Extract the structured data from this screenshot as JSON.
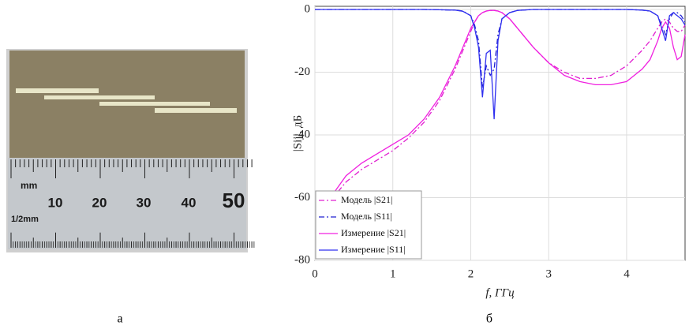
{
  "photo": {
    "ruler_labels": [
      "mm",
      "10",
      "20",
      "30",
      "40",
      "50",
      "1/2mm"
    ]
  },
  "captions": [
    "а",
    "б"
  ],
  "chart_data": {
    "type": "line",
    "xlabel": "f, ГГц",
    "ylabel": "|Sij|, дБ",
    "xlim": [
      0,
      4.75
    ],
    "ylim": [
      -80,
      1
    ],
    "xticks": [
      0,
      1,
      2,
      3,
      4
    ],
    "yticks": [
      -80,
      -60,
      -40,
      -20,
      0
    ],
    "grid": true,
    "legend": "lower left",
    "x": [
      0,
      0.2,
      0.4,
      0.6,
      0.8,
      1.0,
      1.2,
      1.4,
      1.6,
      1.8,
      1.9,
      2.0,
      2.05,
      2.1,
      2.15,
      2.2,
      2.25,
      2.3,
      2.35,
      2.4,
      2.5,
      2.6,
      2.8,
      3.0,
      3.2,
      3.4,
      3.6,
      3.8,
      4.0,
      4.2,
      4.3,
      4.4,
      4.45,
      4.5,
      4.55,
      4.6,
      4.65,
      4.7,
      4.75
    ],
    "series": [
      {
        "name": "Модель |S21|",
        "color": "#e020d0",
        "dash": "dashdot",
        "values": [
          null,
          -61,
          -55,
          -51,
          -48,
          -45,
          -41,
          -36,
          -29,
          -19,
          -13,
          -7,
          -4,
          -2,
          -1,
          -0.5,
          -0.3,
          -0.3,
          -0.5,
          -1,
          -3,
          -6,
          -12,
          -17,
          -20,
          -22,
          -22,
          -21,
          -18,
          -13,
          -10,
          -6,
          -4,
          -3,
          -4,
          -6,
          -7,
          -7,
          -5
        ]
      },
      {
        "name": "Модель |S11|",
        "color": "#2020d0",
        "dash": "dashdot",
        "values": [
          0,
          0,
          0,
          0,
          0,
          0,
          0,
          0,
          -0.1,
          -0.2,
          -0.5,
          -2,
          -5,
          -10,
          -25,
          -18,
          -21,
          -19,
          -8,
          -3,
          -1,
          -0.3,
          0,
          0,
          0,
          0,
          0,
          0,
          0,
          -0.2,
          -0.5,
          -2,
          -5,
          -8,
          -3,
          -1,
          -1,
          -2,
          -4
        ]
      },
      {
        "name": "Измерение |S21|",
        "color": "#f020e0",
        "dash": "solid",
        "values": [
          null,
          -60,
          -53,
          -49,
          -46,
          -43,
          -40,
          -35,
          -28,
          -18,
          -12,
          -6,
          -4,
          -2,
          -1,
          -0.5,
          -0.3,
          -0.3,
          -0.5,
          -1,
          -3,
          -6,
          -12,
          -17,
          -21,
          -23,
          -24,
          -24,
          -23,
          -19,
          -16,
          -10,
          -6,
          -4,
          -6,
          -12,
          -16,
          -15,
          -8
        ]
      },
      {
        "name": "Измерение |S11|",
        "color": "#3030f0",
        "dash": "solid",
        "values": [
          0,
          0,
          0,
          0,
          0,
          0,
          0,
          0,
          -0.1,
          -0.2,
          -0.6,
          -2,
          -6,
          -12,
          -28,
          -14,
          -13,
          -35,
          -10,
          -3,
          -1,
          -0.3,
          0,
          0,
          0,
          0,
          0,
          0,
          0,
          -0.2,
          -0.5,
          -2,
          -6,
          -10,
          -2,
          -1,
          -2,
          -3,
          -5
        ]
      }
    ]
  }
}
